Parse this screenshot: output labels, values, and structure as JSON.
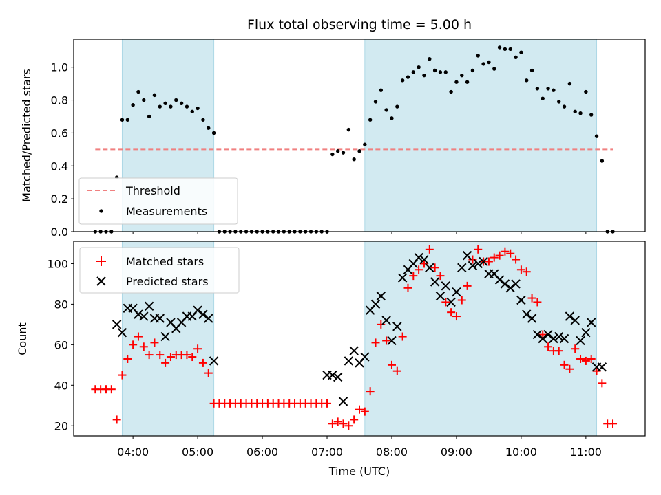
{
  "chart_data": [
    {
      "type": "scatter",
      "title": "Flux total observing time = 5.00 h",
      "ylabel": "Matched/Predicted stars",
      "xlabel": "",
      "ylim": [
        0,
        1.17
      ],
      "yticks": [
        "0.0",
        "0.2",
        "0.4",
        "0.6",
        "0.8",
        "1.0"
      ],
      "shaded_intervals": [
        [
          "03:50",
          "05:15"
        ],
        [
          "07:35",
          "11:10"
        ]
      ],
      "shade_color": "#add8e6",
      "legend_position": "lower left",
      "threshold": {
        "name": "Threshold",
        "value": 0.5,
        "x_start": "03:25",
        "x_end": "11:25",
        "color": "#f08080",
        "style": "dashed"
      },
      "series": [
        {
          "name": "Measurements",
          "color": "#000000",
          "marker": "dot",
          "x": [
            "03:25",
            "03:30",
            "03:35",
            "03:40",
            "03:45",
            "03:50",
            "03:55",
            "04:00",
            "04:05",
            "04:10",
            "04:15",
            "04:20",
            "04:25",
            "04:30",
            "04:35",
            "04:40",
            "04:45",
            "04:50",
            "04:55",
            "05:00",
            "05:05",
            "05:10",
            "05:15",
            "05:20",
            "05:25",
            "05:30",
            "05:35",
            "05:40",
            "05:45",
            "05:50",
            "05:55",
            "06:00",
            "06:05",
            "06:10",
            "06:15",
            "06:20",
            "06:25",
            "06:30",
            "06:35",
            "06:40",
            "06:45",
            "06:50",
            "06:55",
            "07:00",
            "07:05",
            "07:10",
            "07:15",
            "07:20",
            "07:25",
            "07:30",
            "07:35",
            "07:40",
            "07:45",
            "07:50",
            "07:55",
            "08:00",
            "08:05",
            "08:10",
            "08:15",
            "08:20",
            "08:25",
            "08:30",
            "08:35",
            "08:40",
            "08:45",
            "08:50",
            "08:55",
            "09:00",
            "09:05",
            "09:10",
            "09:15",
            "09:20",
            "09:25",
            "09:30",
            "09:35",
            "09:40",
            "09:45",
            "09:50",
            "09:55",
            "10:00",
            "10:05",
            "10:10",
            "10:15",
            "10:20",
            "10:25",
            "10:30",
            "10:35",
            "10:40",
            "10:45",
            "10:50",
            "10:55",
            "11:00",
            "11:05",
            "11:10",
            "11:15",
            "11:20",
            "11:25"
          ],
          "y": [
            0.0,
            0.0,
            0.0,
            0.0,
            0.33,
            0.68,
            0.68,
            0.77,
            0.85,
            0.8,
            0.7,
            0.83,
            0.76,
            0.78,
            0.76,
            0.8,
            0.78,
            0.76,
            0.73,
            0.75,
            0.68,
            0.63,
            0.6,
            0.0,
            0.0,
            0.0,
            0.0,
            0.0,
            0.0,
            0.0,
            0.0,
            0.0,
            0.0,
            0.0,
            0.0,
            0.0,
            0.0,
            0.0,
            0.0,
            0.0,
            0.0,
            0.0,
            0.0,
            0.0,
            0.47,
            0.49,
            0.48,
            0.62,
            0.44,
            0.49,
            0.53,
            0.68,
            0.79,
            0.86,
            0.74,
            0.69,
            0.76,
            0.92,
            0.94,
            0.97,
            1.0,
            0.95,
            1.05,
            0.98,
            0.97,
            0.97,
            0.85,
            0.91,
            0.95,
            0.91,
            0.98,
            1.07,
            1.02,
            1.03,
            0.99,
            1.12,
            1.11,
            1.11,
            1.06,
            1.09,
            0.92,
            0.98,
            0.87,
            0.81,
            0.87,
            0.86,
            0.79,
            0.76,
            0.9,
            0.73,
            0.72,
            0.85,
            0.71,
            0.58,
            0.43,
            0.0,
            0.0
          ]
        }
      ]
    },
    {
      "type": "scatter",
      "title": "",
      "ylabel": "Count",
      "xlabel": "Time (UTC)",
      "ylim": [
        15,
        111
      ],
      "yticks": [
        "20",
        "40",
        "60",
        "80",
        "100"
      ],
      "xlim": [
        "03:05",
        "11:55"
      ],
      "xticks": [
        "04:00",
        "05:00",
        "06:00",
        "07:00",
        "08:00",
        "09:00",
        "10:00",
        "11:00"
      ],
      "shaded_intervals": [
        [
          "03:50",
          "05:15"
        ],
        [
          "07:35",
          "11:10"
        ]
      ],
      "shade_color": "#add8e6",
      "legend_position": "upper left",
      "series": [
        {
          "name": "Matched stars",
          "color": "#ff0000",
          "marker": "plus",
          "x": [
            "03:25",
            "03:30",
            "03:35",
            "03:40",
            "03:45",
            "03:50",
            "03:55",
            "04:00",
            "04:05",
            "04:10",
            "04:15",
            "04:20",
            "04:25",
            "04:30",
            "04:35",
            "04:40",
            "04:45",
            "04:50",
            "04:55",
            "05:00",
            "05:05",
            "05:10",
            "05:15",
            "05:20",
            "05:25",
            "05:30",
            "05:35",
            "05:40",
            "05:45",
            "05:50",
            "05:55",
            "06:00",
            "06:05",
            "06:10",
            "06:15",
            "06:20",
            "06:25",
            "06:30",
            "06:35",
            "06:40",
            "06:45",
            "06:50",
            "06:55",
            "07:00",
            "07:05",
            "07:10",
            "07:15",
            "07:20",
            "07:25",
            "07:30",
            "07:35",
            "07:40",
            "07:45",
            "07:50",
            "07:55",
            "08:00",
            "08:05",
            "08:10",
            "08:15",
            "08:20",
            "08:25",
            "08:30",
            "08:35",
            "08:40",
            "08:45",
            "08:50",
            "08:55",
            "09:00",
            "09:05",
            "09:10",
            "09:15",
            "09:20",
            "09:25",
            "09:30",
            "09:35",
            "09:40",
            "09:45",
            "09:50",
            "09:55",
            "10:00",
            "10:05",
            "10:10",
            "10:15",
            "10:20",
            "10:25",
            "10:30",
            "10:35",
            "10:40",
            "10:45",
            "10:50",
            "10:55",
            "11:00",
            "11:05",
            "11:10",
            "11:15",
            "11:20",
            "11:25"
          ],
          "y": [
            38,
            38,
            38,
            38,
            23,
            45,
            53,
            60,
            64,
            59,
            55,
            61,
            55,
            51,
            54,
            55,
            55,
            55,
            54,
            58,
            51,
            46,
            31,
            31,
            31,
            31,
            31,
            31,
            31,
            31,
            31,
            31,
            31,
            31,
            31,
            31,
            31,
            31,
            31,
            31,
            31,
            31,
            31,
            31,
            21,
            22,
            21,
            20,
            23,
            28,
            27,
            37,
            61,
            70,
            62,
            50,
            47,
            64,
            88,
            94,
            97,
            100,
            107,
            98,
            94,
            81,
            76,
            74,
            82,
            89,
            102,
            107,
            101,
            101,
            103,
            104,
            106,
            105,
            102,
            97,
            96,
            83,
            81,
            65,
            59,
            57,
            57,
            50,
            48,
            58,
            53,
            52,
            53,
            47,
            41,
            21,
            21
          ]
        },
        {
          "name": "Predicted stars",
          "color": "#000000",
          "marker": "x",
          "x": [
            "03:45",
            "03:50",
            "03:55",
            "04:00",
            "04:05",
            "04:10",
            "04:15",
            "04:20",
            "04:25",
            "04:30",
            "04:35",
            "04:40",
            "04:45",
            "04:50",
            "04:55",
            "05:00",
            "05:05",
            "05:10",
            "05:15",
            "07:00",
            "07:05",
            "07:10",
            "07:15",
            "07:20",
            "07:25",
            "07:30",
            "07:35",
            "07:40",
            "07:45",
            "07:50",
            "07:55",
            "08:00",
            "08:05",
            "08:10",
            "08:15",
            "08:20",
            "08:25",
            "08:30",
            "08:35",
            "08:40",
            "08:45",
            "08:50",
            "08:55",
            "09:00",
            "09:05",
            "09:10",
            "09:15",
            "09:20",
            "09:25",
            "09:30",
            "09:35",
            "09:40",
            "09:45",
            "09:50",
            "09:55",
            "10:00",
            "10:05",
            "10:10",
            "10:15",
            "10:20",
            "10:25",
            "10:30",
            "10:35",
            "10:40",
            "10:45",
            "10:50",
            "10:55",
            "11:00",
            "11:05",
            "11:10",
            "11:15"
          ],
          "y": [
            70,
            66,
            78,
            78,
            75,
            74,
            79,
            73,
            73,
            64,
            71,
            68,
            71,
            74,
            74,
            77,
            75,
            73,
            52,
            45,
            45,
            44,
            32,
            52,
            57,
            51,
            54,
            77,
            80,
            84,
            72,
            62,
            69,
            93,
            97,
            100,
            103,
            102,
            98,
            91,
            84,
            89,
            81,
            86,
            98,
            104,
            99,
            100,
            101,
            95,
            95,
            92,
            90,
            88,
            90,
            82,
            75,
            73,
            65,
            63,
            65,
            63,
            64,
            63,
            74,
            72,
            62,
            66,
            71,
            49,
            49
          ]
        }
      ]
    }
  ]
}
